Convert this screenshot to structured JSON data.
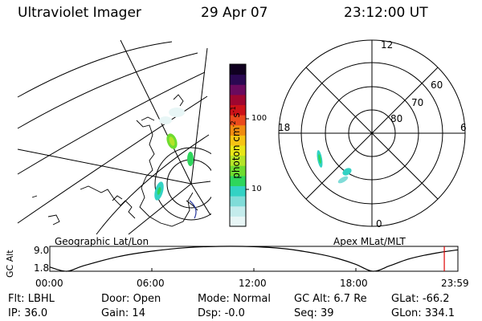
{
  "header": {
    "instrument": "Ultraviolet Imager",
    "date": "29 Apr 07",
    "time": "23:12:00 UT"
  },
  "geographic_panel": {
    "label": "Geographic Lat/Lon"
  },
  "polar_panel": {
    "label": "Apex MLat/MLT",
    "clock_labels": [
      "12",
      "18",
      "6",
      "0"
    ],
    "lat_labels": [
      "60",
      "70",
      "80"
    ]
  },
  "colorbar": {
    "unit_label": "photon cm",
    "unit_exp1": "-2",
    "unit_mid": "s",
    "unit_exp2": "-1",
    "ticks": [
      "100",
      "10"
    ],
    "colors": [
      "#e8f6f6",
      "#c4ecec",
      "#80dcd8",
      "#33d2c4",
      "#2ed65c",
      "#6edc30",
      "#b4e428",
      "#e8e618",
      "#f6c414",
      "#f08c10",
      "#ea4a1c",
      "#cc1218",
      "#9e0630",
      "#6a0a5e",
      "#2a0852",
      "#100020"
    ]
  },
  "altitude_chart": {
    "ylabel": "GC Alt",
    "yticks": [
      "9.0",
      "1.8"
    ],
    "xticks": [
      "00:00",
      "06:00",
      "12:00",
      "18:00",
      "23:59"
    ],
    "current_time_marker": "23:12"
  },
  "chart_data": {
    "type": "line",
    "title": "",
    "xlabel": "",
    "ylabel": "GC Alt",
    "xlim": [
      0,
      24
    ],
    "ylim": [
      1.8,
      9.0
    ],
    "marker_x": 23.2,
    "x": [
      0,
      1,
      2,
      4,
      6,
      8,
      10,
      12,
      14,
      16,
      17,
      18,
      19,
      20,
      21,
      22,
      23,
      24
    ],
    "y": [
      3.0,
      1.8,
      3.4,
      6.0,
      7.6,
      8.6,
      9.0,
      8.9,
      8.2,
      6.6,
      5.4,
      3.8,
      1.8,
      3.4,
      5.2,
      6.4,
      7.3,
      8.0
    ]
  },
  "status": {
    "row1": [
      {
        "label": "Flt:",
        "value": "LBHL"
      },
      {
        "label": "Door:",
        "value": "Open"
      },
      {
        "label": "Mode:",
        "value": "Normal"
      },
      {
        "label": "GC Alt:",
        "value": "6.7 Re"
      },
      {
        "label": "GLat:",
        "value": "-66.2"
      }
    ],
    "row2": [
      {
        "label": "IP:",
        "value": "36.0"
      },
      {
        "label": "Gain:",
        "value": "14"
      },
      {
        "label": "Dsp:",
        "value": "-0.0"
      },
      {
        "label": "Seq:",
        "value": "39"
      },
      {
        "label": "GLon:",
        "value": "334.1"
      }
    ]
  }
}
